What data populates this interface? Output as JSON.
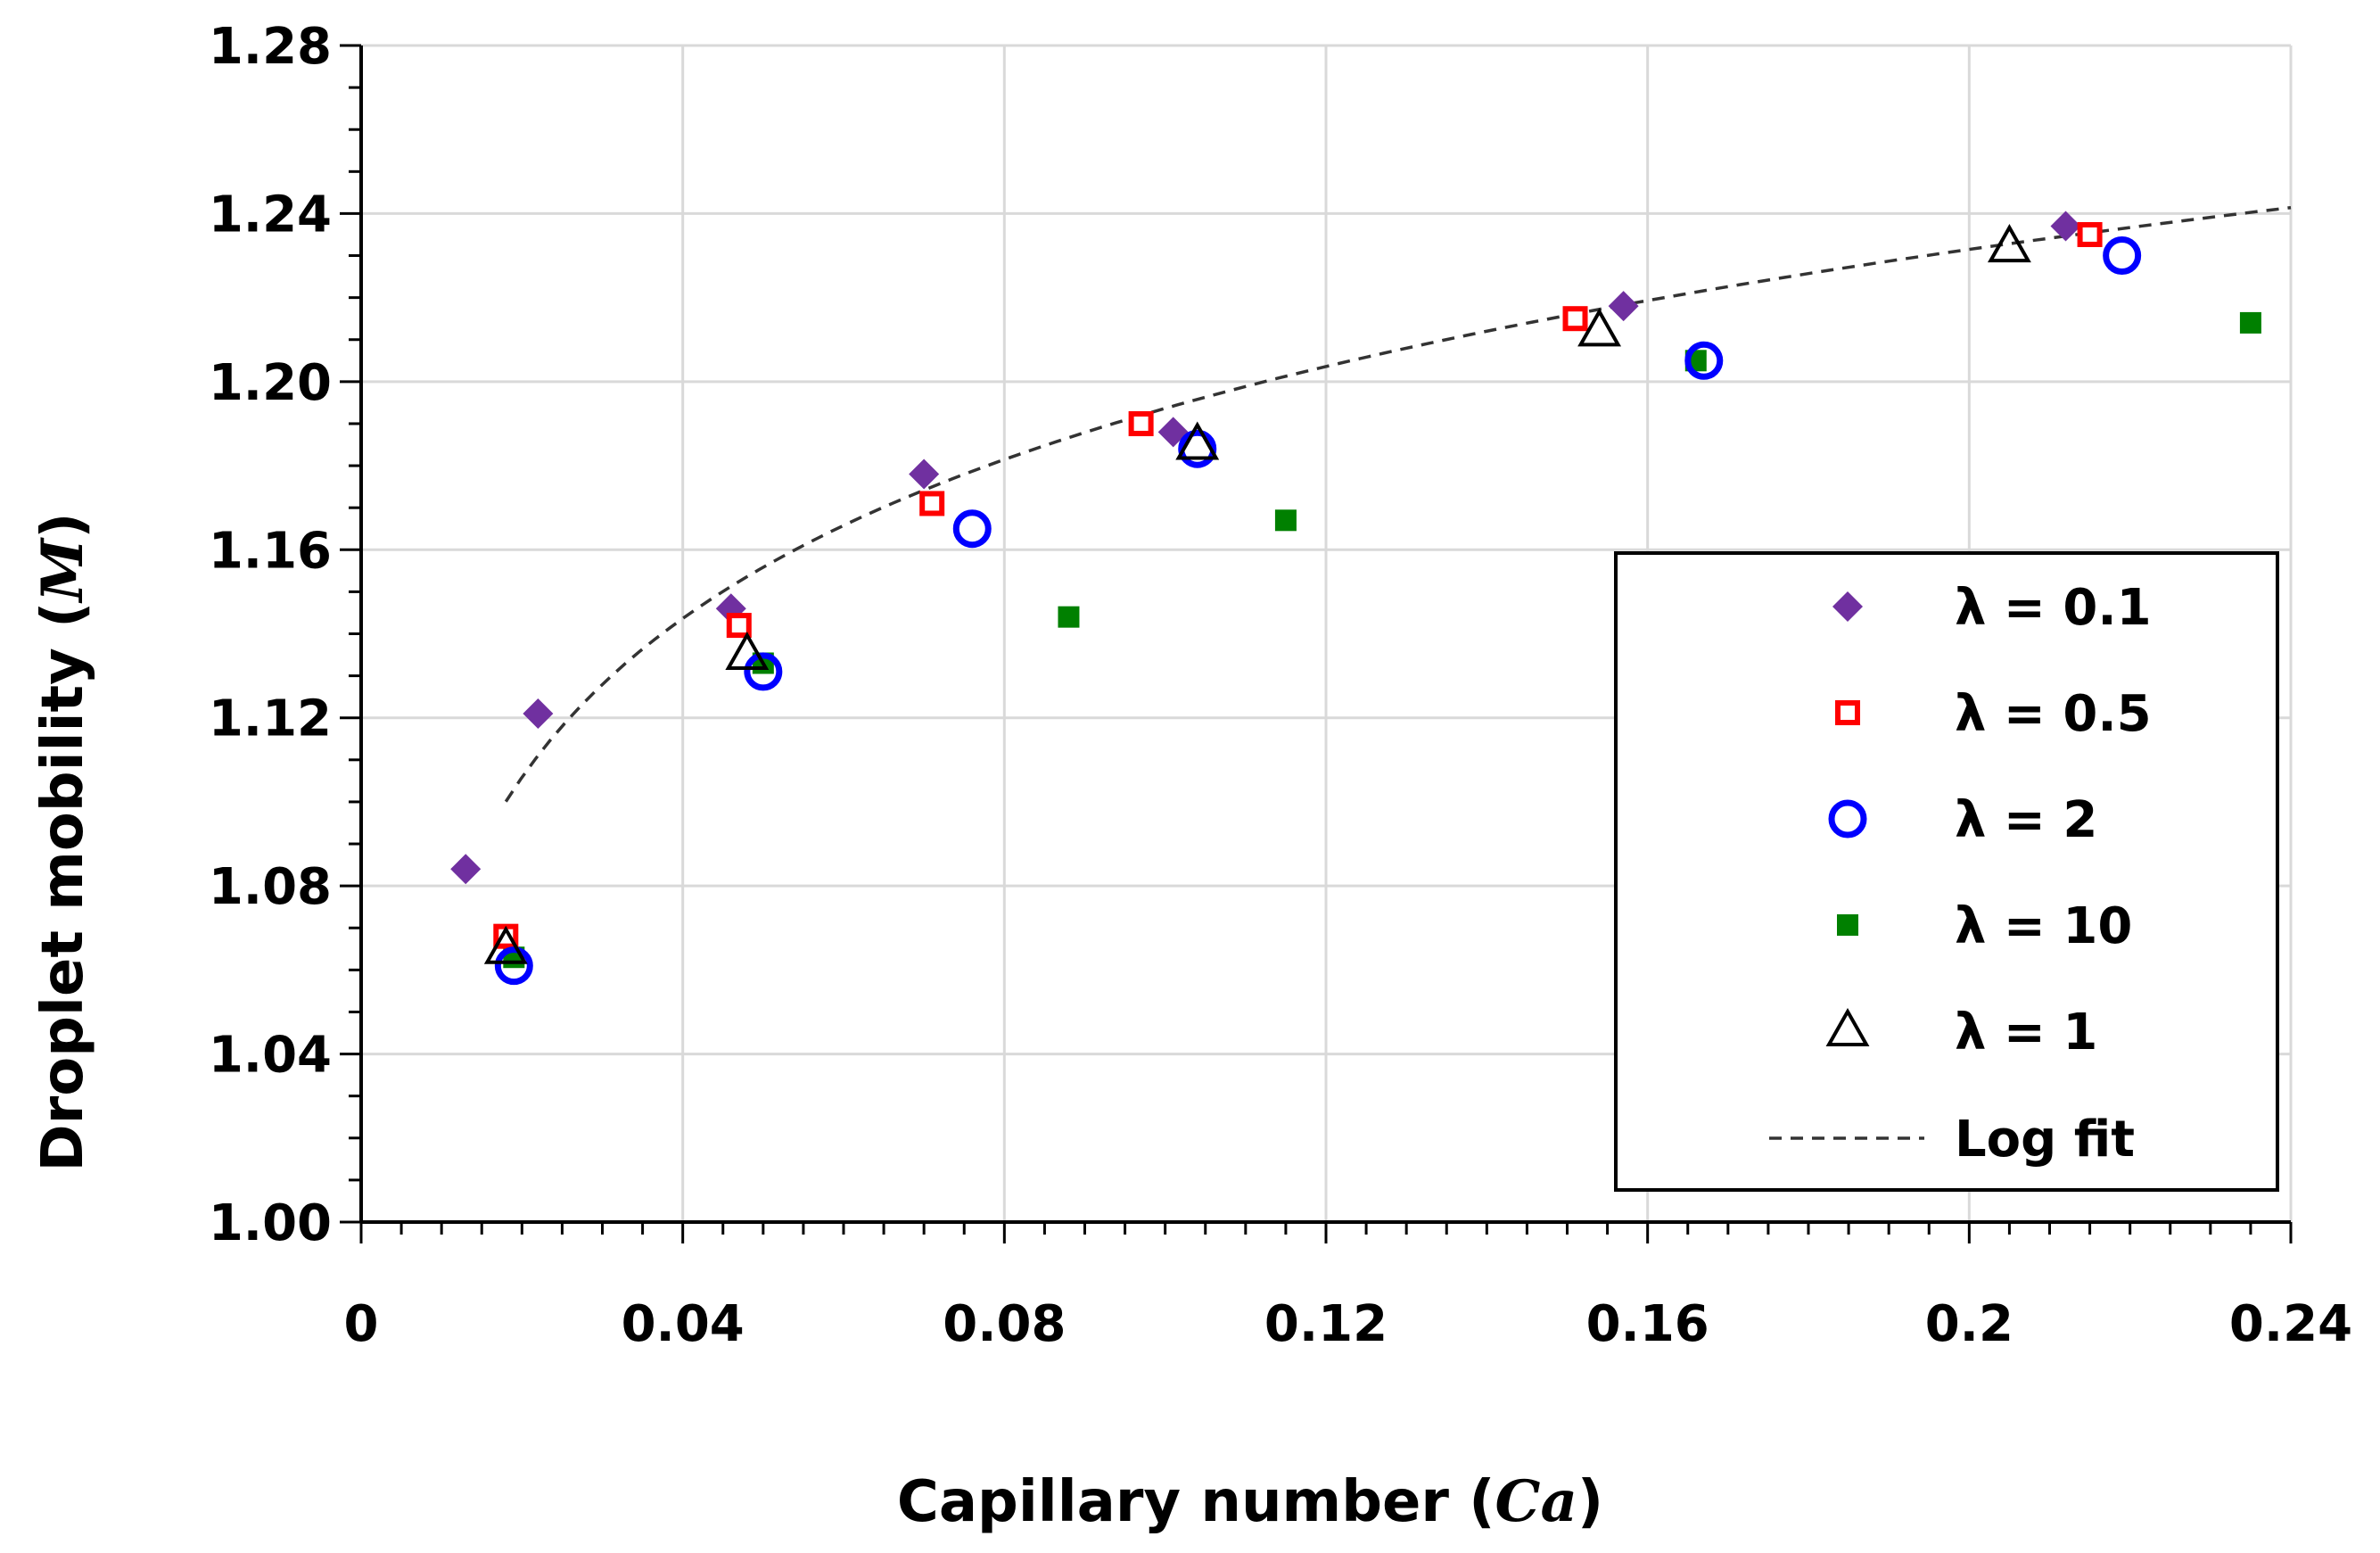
{
  "chart_data": {
    "type": "scatter",
    "xlabel": "Capillary number (Ca)",
    "xlabel_main": "Capillary number (",
    "xlabel_var": "Ca",
    "xlabel_close": ")",
    "ylabel": "Droplet mobility (M)",
    "ylabel_main": "Droplet mobility (",
    "ylabel_var": "M",
    "ylabel_close": ")",
    "xlim": [
      0,
      0.24
    ],
    "ylim": [
      1.0,
      1.28
    ],
    "xticks": [
      0,
      0.04,
      0.08,
      0.12,
      0.16,
      0.2,
      0.24
    ],
    "xtick_labels": [
      "0",
      "0.04",
      "0.08",
      "0.12",
      "0.16",
      "0.2",
      "0.24"
    ],
    "yticks": [
      1.0,
      1.04,
      1.08,
      1.12,
      1.16,
      1.2,
      1.24,
      1.28
    ],
    "ytick_labels": [
      "1.00",
      "1.04",
      "1.08",
      "1.12",
      "1.16",
      "1.20",
      "1.24",
      "1.28"
    ],
    "grid": true,
    "legend_position": "bottom-right",
    "series": [
      {
        "name": "λ = 0.1",
        "marker": "diamond",
        "color": "#7030A0",
        "points": [
          [
            0.013,
            1.084
          ],
          [
            0.022,
            1.121
          ],
          [
            0.046,
            1.146
          ],
          [
            0.07,
            1.178
          ],
          [
            0.101,
            1.188
          ],
          [
            0.157,
            1.218
          ],
          [
            0.212,
            1.237
          ]
        ]
      },
      {
        "name": "λ = 0.5",
        "marker": "open-square",
        "color": "#FF0000",
        "points": [
          [
            0.018,
            1.068
          ],
          [
            0.047,
            1.142
          ],
          [
            0.071,
            1.171
          ],
          [
            0.097,
            1.19
          ],
          [
            0.151,
            1.215
          ],
          [
            0.215,
            1.235
          ]
        ]
      },
      {
        "name": "λ = 2",
        "marker": "open-circle",
        "color": "#0000FF",
        "points": [
          [
            0.019,
            1.061
          ],
          [
            0.05,
            1.131
          ],
          [
            0.076,
            1.165
          ],
          [
            0.104,
            1.184
          ],
          [
            0.167,
            1.205
          ],
          [
            0.219,
            1.23
          ]
        ]
      },
      {
        "name": "λ = 10",
        "marker": "square",
        "color": "#008000",
        "points": [
          [
            0.019,
            1.063
          ],
          [
            0.05,
            1.133
          ],
          [
            0.088,
            1.144
          ],
          [
            0.115,
            1.167
          ],
          [
            0.166,
            1.205
          ],
          [
            0.235,
            1.214
          ]
        ]
      },
      {
        "name": "λ = 1",
        "marker": "open-triangle",
        "color": "#000000",
        "points": [
          [
            0.018,
            1.065
          ],
          [
            0.048,
            1.135
          ],
          [
            0.104,
            1.185
          ],
          [
            0.154,
            1.212
          ],
          [
            0.205,
            1.232
          ]
        ]
      }
    ],
    "fit": {
      "name": "Log fit",
      "style": "dashed",
      "color": "#333333",
      "a": 1.3193,
      "b": 0.05457,
      "x_range": [
        0.018,
        0.24
      ]
    }
  }
}
